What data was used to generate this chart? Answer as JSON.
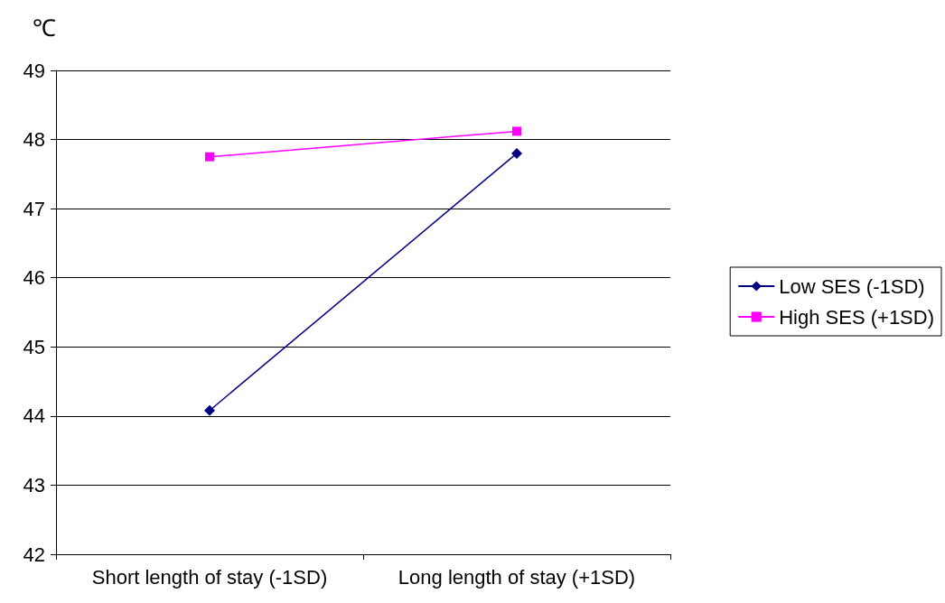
{
  "chart_data": {
    "type": "line",
    "ylabel": "℃",
    "categories": [
      "Short length of stay (-1SD)",
      "Long length of stay (+1SD)"
    ],
    "series": [
      {
        "name": "Low SES (-1SD)",
        "color": "#000080",
        "marker": "diamond",
        "values": [
          44.08,
          47.8
        ]
      },
      {
        "name": "High SES (+1SD)",
        "color": "#ff00ff",
        "marker": "square",
        "values": [
          47.75,
          48.12
        ]
      }
    ],
    "ylim": [
      42,
      49
    ],
    "yticks": [
      42,
      43,
      44,
      45,
      46,
      47,
      48,
      49
    ],
    "grid": "y",
    "legend": "right"
  }
}
